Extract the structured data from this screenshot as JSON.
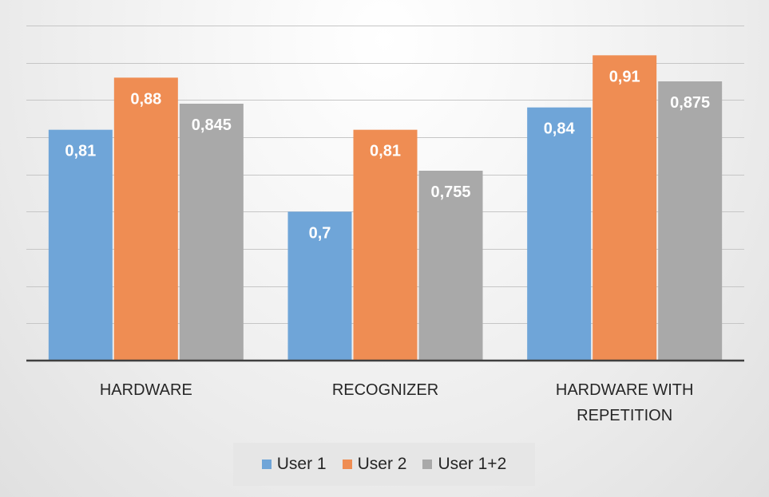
{
  "chart_data": {
    "type": "bar",
    "categories": [
      [
        "HARDWARE"
      ],
      [
        "RECOGNIZER"
      ],
      [
        "HARDWARE WITH",
        "REPETITION"
      ]
    ],
    "series": [
      {
        "name": "User 1",
        "color": "#6fa5d8",
        "values": [
          0.81,
          0.7,
          0.84
        ],
        "labels": [
          "0,81",
          "0,7",
          "0,84"
        ]
      },
      {
        "name": "User 2",
        "color": "#ef8d53",
        "values": [
          0.88,
          0.81,
          0.91
        ],
        "labels": [
          "0,88",
          "0,81",
          "0,91"
        ]
      },
      {
        "name": "User 1+2",
        "color": "#a9a9a9",
        "values": [
          0.845,
          0.755,
          0.875
        ],
        "labels": [
          "0,845",
          "0,755",
          "0,875"
        ]
      }
    ],
    "ylim": [
      0.5,
      0.95
    ],
    "gridlines": true,
    "y_tick_labels_shown": false,
    "legend_position": "bottom"
  }
}
